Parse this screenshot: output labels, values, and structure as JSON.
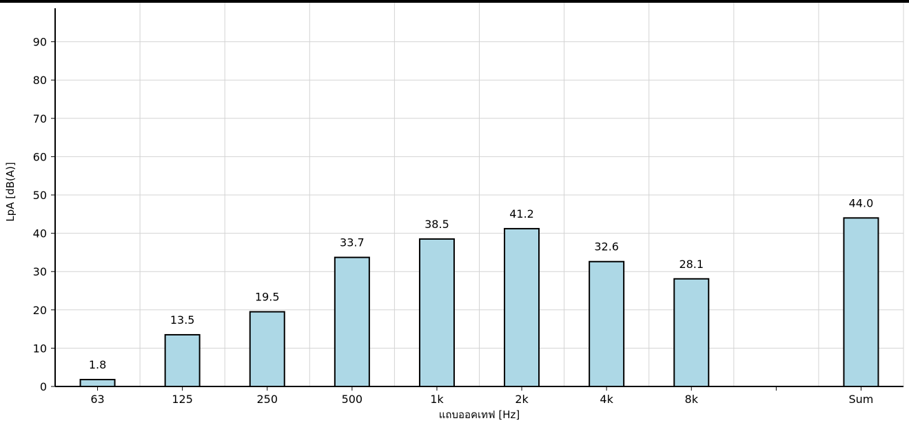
{
  "chart_data": {
    "type": "bar",
    "title": "",
    "xlabel": "แถบออคเทฟ [Hz]",
    "ylabel": "LpA [dB(A)]",
    "categories": [
      "63",
      "125",
      "250",
      "500",
      "1k",
      "2k",
      "4k",
      "8k",
      "",
      "Sum"
    ],
    "values": [
      1.8,
      13.5,
      19.5,
      33.7,
      38.5,
      41.2,
      32.6,
      28.1,
      0,
      44.0
    ],
    "value_labels": [
      "1.8",
      "13.5",
      "19.5",
      "33.7",
      "38.5",
      "41.2",
      "32.6",
      "28.1",
      "",
      "44.0"
    ],
    "yticks": [
      "0",
      "10",
      "20",
      "30",
      "40",
      "50",
      "60",
      "70",
      "80",
      "90"
    ],
    "ylim": [
      0,
      100
    ],
    "grid": true,
    "bar_color": "#add8e6",
    "bar_edge_color": "#000000",
    "grid_color": "#d3d3d3"
  }
}
